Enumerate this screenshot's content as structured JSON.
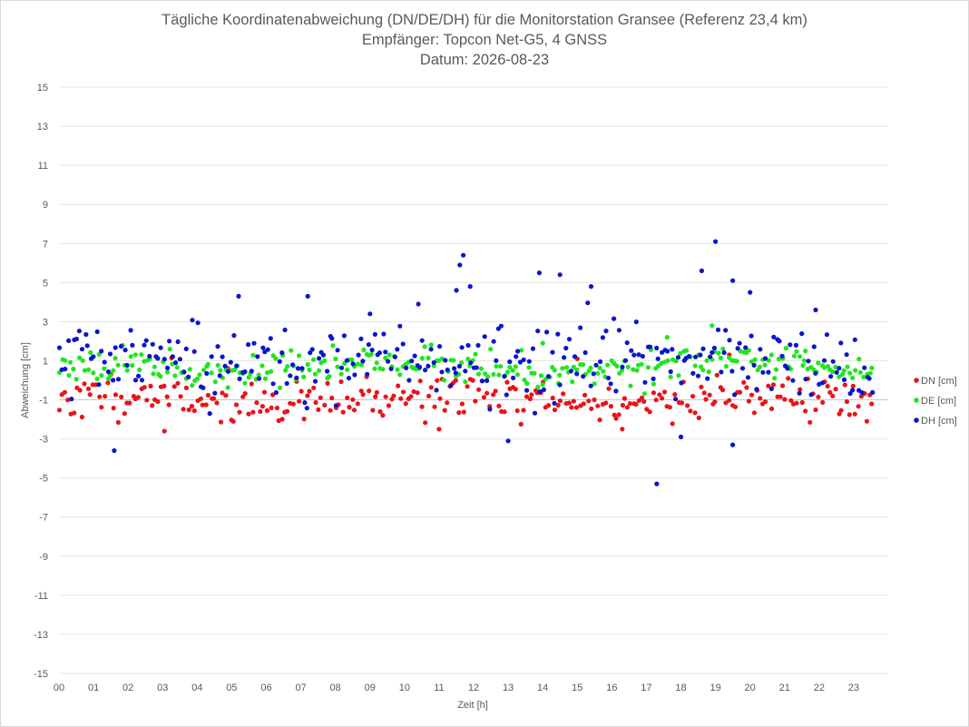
{
  "chart_data": {
    "type": "scatter",
    "title": "Tägliche Koordinatenabweichung (DN/DE/DH) für die Monitorstation Gransee (Referenz 23,4 km)",
    "subtitle_1": "Empfänger: Topcon Net-G5, 4 GNSS",
    "subtitle_2": "Datum: 2026-08-23",
    "xlabel": "Zeit [h]",
    "ylabel": "Abweichung [cm]",
    "xlim": [
      0,
      24
    ],
    "ylim": [
      -15,
      15
    ],
    "x_ticks": [
      "00",
      "01",
      "02",
      "03",
      "04",
      "05",
      "06",
      "07",
      "08",
      "09",
      "10",
      "11",
      "12",
      "13",
      "14",
      "15",
      "16",
      "17",
      "18",
      "19",
      "20",
      "21",
      "22",
      "23"
    ],
    "y_ticks": [
      "15",
      "13",
      "11",
      "9",
      "7",
      "5",
      "3",
      "1",
      "-1",
      "-3",
      "-5",
      "-7",
      "-9",
      "-11",
      "-13",
      "-15"
    ],
    "grid": "horizontal",
    "legend_position": "right",
    "series": [
      {
        "name": "DN [cm]",
        "color": "#e8141b",
        "generator": {
          "mean": -1.0,
          "spread": 0.55,
          "seed": 11
        },
        "outliers": [
          [
            3.05,
            -2.6
          ],
          [
            11.0,
            -2.5
          ],
          [
            16.3,
            -2.5
          ],
          [
            19.4,
            1.3
          ],
          [
            15.0,
            1.1
          ]
        ]
      },
      {
        "name": "DE [cm]",
        "color": "#1ee61e",
        "generator": {
          "mean": 0.7,
          "spread": 0.4,
          "seed": 23
        },
        "outliers": [
          [
            18.9,
            2.8
          ],
          [
            17.6,
            2.2
          ],
          [
            14.0,
            1.9
          ],
          [
            21.6,
            1.5
          ]
        ]
      },
      {
        "name": "DH [cm]",
        "color": "#0b16cc",
        "generator": {
          "mean": 0.9,
          "spread": 1.0,
          "seed": 37
        },
        "outliers": [
          [
            1.6,
            -3.6
          ],
          [
            17.3,
            -5.3
          ],
          [
            11.7,
            6.4
          ],
          [
            19.0,
            7.1
          ],
          [
            11.6,
            5.9
          ],
          [
            13.9,
            5.5
          ],
          [
            18.6,
            5.6
          ],
          [
            19.5,
            5.1
          ],
          [
            5.2,
            4.3
          ],
          [
            7.2,
            4.3
          ],
          [
            11.5,
            4.6
          ],
          [
            11.9,
            4.8
          ],
          [
            15.4,
            4.8
          ],
          [
            13.0,
            -3.1
          ],
          [
            19.5,
            -3.3
          ],
          [
            18.0,
            -2.9
          ],
          [
            9.0,
            3.4
          ],
          [
            10.4,
            3.9
          ],
          [
            20.0,
            4.5
          ],
          [
            21.9,
            3.6
          ],
          [
            14.5,
            5.4
          ]
        ]
      }
    ]
  }
}
